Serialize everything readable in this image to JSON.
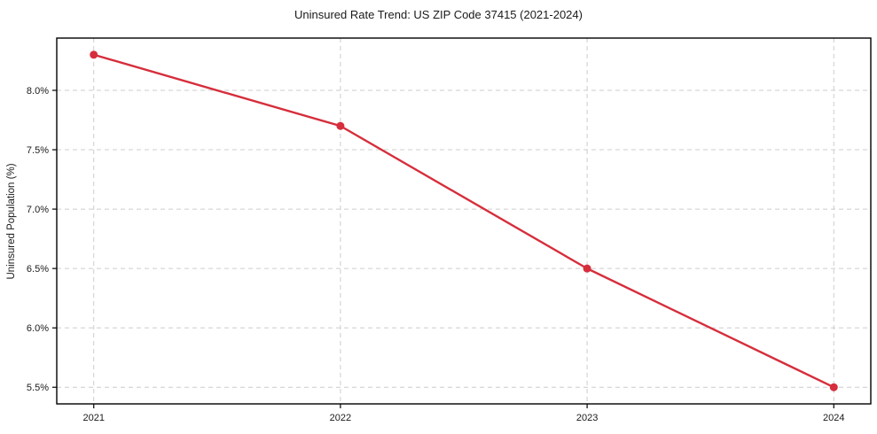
{
  "chart_data": {
    "type": "line",
    "title": "Uninsured Rate Trend: US ZIP Code 37415 (2021-2024)",
    "xlabel": "",
    "ylabel": "Uninsured Population (%)",
    "x": [
      2021,
      2022,
      2023,
      2024
    ],
    "x_tick_labels": [
      "2021",
      "2022",
      "2023",
      "2024"
    ],
    "series": [
      {
        "name": "uninsured-rate",
        "values": [
          8.3,
          7.7,
          6.5,
          5.5
        ],
        "color": "#d62e3c",
        "marker": "circle"
      }
    ],
    "y_ticks": [
      5.5,
      6.0,
      6.5,
      7.0,
      7.5,
      8.0
    ],
    "y_tick_labels": [
      "5.5%",
      "6.0%",
      "6.5%",
      "7.0%",
      "7.5%",
      "8.0%"
    ],
    "xlim": [
      2020.85,
      2024.15
    ],
    "ylim": [
      5.36,
      8.44
    ],
    "grid": true,
    "grid_color": "#cccccc",
    "grid_dash": "5 4",
    "background": "#ffffff",
    "spine_color": "#000000",
    "tick_color": "#000000",
    "legend": "none"
  }
}
